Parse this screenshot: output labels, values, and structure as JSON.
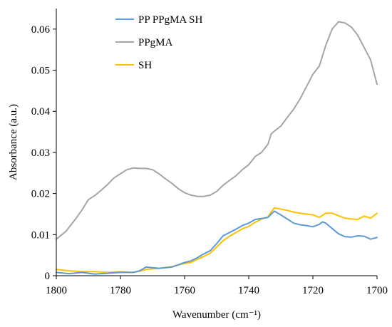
{
  "chart_data": {
    "type": "line",
    "xlabel": "Wavenumber (cm⁻¹)",
    "ylabel": "Absorbance (a.u.)",
    "xlim": [
      1800,
      1700
    ],
    "ylim": [
      0,
      0.065
    ],
    "x_reversed": true,
    "x_ticks": [
      1800,
      1780,
      1760,
      1740,
      1720,
      1700
    ],
    "y_ticks": [
      0,
      0.01,
      0.02,
      0.03,
      0.04,
      0.05,
      0.06
    ],
    "y_tick_labels": [
      "0",
      "0.01",
      "0.02",
      "0.03",
      "0.04",
      "0.05",
      "0.06"
    ],
    "grid": false,
    "legend_position": "top-center",
    "series": [
      {
        "name": "PP PPgMA SH",
        "color": "#5b9bd5",
        "x": [
          1800,
          1796,
          1792,
          1788,
          1784,
          1780,
          1776,
          1774,
          1772,
          1768,
          1764,
          1760,
          1758,
          1756,
          1754,
          1752,
          1750,
          1748,
          1746,
          1744,
          1742,
          1740,
          1738,
          1736,
          1734,
          1733,
          1732,
          1730,
          1728,
          1726,
          1724,
          1722,
          1720,
          1718,
          1717,
          1716,
          1714,
          1712,
          1710,
          1708,
          1706,
          1704,
          1702,
          1700
        ],
        "y": [
          0.0008,
          0.0005,
          0.0008,
          0.0004,
          0.0006,
          0.0008,
          0.0008,
          0.0012,
          0.0021,
          0.0018,
          0.0021,
          0.0032,
          0.0036,
          0.0044,
          0.0053,
          0.0061,
          0.0078,
          0.0097,
          0.0105,
          0.0113,
          0.0122,
          0.0128,
          0.0137,
          0.0139,
          0.0142,
          0.015,
          0.0157,
          0.0148,
          0.0138,
          0.0128,
          0.0124,
          0.0122,
          0.0119,
          0.0125,
          0.0131,
          0.0128,
          0.0115,
          0.0102,
          0.0095,
          0.0094,
          0.0097,
          0.0096,
          0.0089,
          0.0093
        ]
      },
      {
        "name": "PPgMA",
        "color": "#a5a5a5",
        "x": [
          1800,
          1797,
          1794,
          1792,
          1790,
          1788,
          1786,
          1784,
          1782,
          1780,
          1778,
          1776,
          1774,
          1772,
          1770,
          1768,
          1766,
          1764,
          1762,
          1760,
          1758,
          1756,
          1754,
          1752,
          1750,
          1748,
          1746,
          1744,
          1742,
          1740,
          1738,
          1736,
          1734,
          1733,
          1732,
          1730,
          1728,
          1726,
          1724,
          1722,
          1720,
          1718,
          1716,
          1714,
          1712,
          1710,
          1708,
          1706,
          1704,
          1702,
          1700
        ],
        "y": [
          0.0089,
          0.0108,
          0.0138,
          0.016,
          0.0185,
          0.0195,
          0.0208,
          0.0222,
          0.0238,
          0.0248,
          0.0258,
          0.0262,
          0.0261,
          0.0261,
          0.0258,
          0.0248,
          0.0236,
          0.0225,
          0.0212,
          0.0202,
          0.0196,
          0.0193,
          0.0193,
          0.0196,
          0.0205,
          0.022,
          0.0232,
          0.0243,
          0.0258,
          0.027,
          0.029,
          0.03,
          0.032,
          0.0345,
          0.0352,
          0.0364,
          0.0385,
          0.0405,
          0.043,
          0.046,
          0.049,
          0.051,
          0.056,
          0.06,
          0.0618,
          0.0615,
          0.0605,
          0.0585,
          0.0555,
          0.0525,
          0.0466
        ]
      },
      {
        "name": "SH",
        "color": "#ffc000",
        "x": [
          1800,
          1796,
          1792,
          1788,
          1784,
          1780,
          1776,
          1774,
          1772,
          1768,
          1764,
          1760,
          1758,
          1756,
          1754,
          1752,
          1750,
          1748,
          1746,
          1744,
          1742,
          1740,
          1738,
          1736,
          1734,
          1733,
          1732,
          1730,
          1728,
          1726,
          1724,
          1722,
          1720,
          1718,
          1716,
          1714,
          1712,
          1710,
          1708,
          1706,
          1704,
          1702,
          1700
        ],
        "y": [
          0.0015,
          0.0012,
          0.001,
          0.001,
          0.0008,
          0.001,
          0.0008,
          0.0011,
          0.0015,
          0.0018,
          0.0022,
          0.003,
          0.0032,
          0.004,
          0.0047,
          0.0055,
          0.007,
          0.0085,
          0.0096,
          0.0105,
          0.0114,
          0.012,
          0.013,
          0.0138,
          0.0143,
          0.0155,
          0.0165,
          0.0162,
          0.0159,
          0.0155,
          0.0152,
          0.015,
          0.0148,
          0.0142,
          0.0152,
          0.0152,
          0.0146,
          0.014,
          0.0138,
          0.0137,
          0.0145,
          0.014,
          0.0152
        ]
      }
    ]
  }
}
